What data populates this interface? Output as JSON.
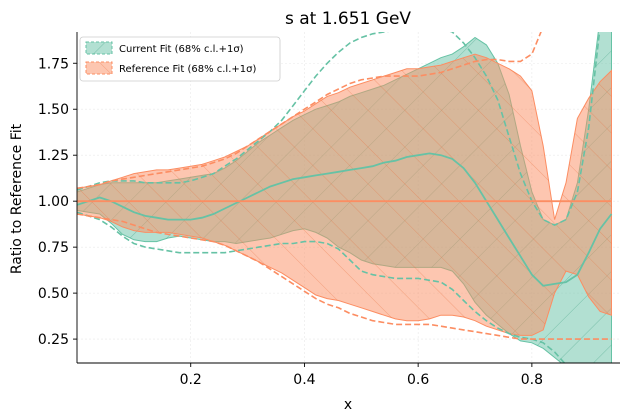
{
  "chart_data": {
    "type": "area",
    "title": "s at 1.651 GeV",
    "xlabel": "x",
    "ylabel": "Ratio to Reference Fit",
    "xlim": [
      0.0,
      0.955
    ],
    "ylim": [
      0.12,
      1.92
    ],
    "x_ticks": [
      0.2,
      0.4,
      0.6,
      0.8
    ],
    "x_tick_labels": [
      "0.2",
      "0.4",
      "0.6",
      "0.8"
    ],
    "y_ticks": [
      0.25,
      0.5,
      0.75,
      1.0,
      1.25,
      1.5,
      1.75
    ],
    "y_tick_labels": [
      "0.25",
      "0.50",
      "0.75",
      "1.00",
      "1.25",
      "1.50",
      "1.75"
    ],
    "grid": true,
    "legend_position": "top-left",
    "colors": {
      "current": "#66c2a5",
      "reference": "#fc8d62"
    },
    "x": [
      0.0,
      0.02,
      0.04,
      0.06,
      0.08,
      0.1,
      0.12,
      0.14,
      0.16,
      0.18,
      0.2,
      0.22,
      0.24,
      0.26,
      0.28,
      0.3,
      0.32,
      0.34,
      0.36,
      0.38,
      0.4,
      0.42,
      0.44,
      0.46,
      0.48,
      0.5,
      0.52,
      0.54,
      0.56,
      0.58,
      0.6,
      0.62,
      0.64,
      0.66,
      0.68,
      0.7,
      0.72,
      0.74,
      0.76,
      0.78,
      0.8,
      0.82,
      0.84,
      0.86,
      0.88,
      0.9,
      0.92,
      0.94
    ],
    "series": [
      {
        "name": "Current Fit (68% c.l.+1σ)",
        "central": [
          0.98,
          1.0,
          1.02,
          1.0,
          0.97,
          0.94,
          0.92,
          0.91,
          0.9,
          0.9,
          0.9,
          0.91,
          0.93,
          0.96,
          0.99,
          1.02,
          1.05,
          1.08,
          1.1,
          1.12,
          1.13,
          1.14,
          1.15,
          1.16,
          1.17,
          1.18,
          1.19,
          1.21,
          1.22,
          1.24,
          1.25,
          1.26,
          1.25,
          1.23,
          1.18,
          1.1,
          1.0,
          0.9,
          0.8,
          0.7,
          0.6,
          0.54,
          0.55,
          0.56,
          0.6,
          0.72,
          0.85,
          0.93
        ],
        "lower": [
          0.95,
          0.94,
          0.93,
          0.88,
          0.82,
          0.79,
          0.78,
          0.78,
          0.8,
          0.81,
          0.8,
          0.79,
          0.78,
          0.78,
          0.77,
          0.78,
          0.79,
          0.8,
          0.82,
          0.84,
          0.85,
          0.83,
          0.8,
          0.75,
          0.72,
          0.68,
          0.66,
          0.65,
          0.64,
          0.64,
          0.64,
          0.64,
          0.64,
          0.62,
          0.55,
          0.45,
          0.38,
          0.33,
          0.28,
          0.24,
          0.23,
          0.2,
          0.15,
          0.1,
          0.05,
          0.05,
          0.05,
          0.05
        ],
        "upper": [
          1.05,
          1.07,
          1.09,
          1.1,
          1.1,
          1.1,
          1.1,
          1.1,
          1.11,
          1.12,
          1.13,
          1.14,
          1.15,
          1.18,
          1.22,
          1.27,
          1.32,
          1.36,
          1.4,
          1.44,
          1.47,
          1.5,
          1.52,
          1.54,
          1.57,
          1.59,
          1.61,
          1.63,
          1.66,
          1.69,
          1.72,
          1.75,
          1.78,
          1.8,
          1.84,
          1.89,
          1.85,
          1.75,
          1.58,
          1.3,
          1.05,
          0.9,
          0.87,
          0.9,
          1.1,
          1.5,
          2.0,
          2.1
        ],
        "dashed_lower": [
          0.94,
          0.92,
          0.9,
          0.86,
          0.81,
          0.77,
          0.75,
          0.74,
          0.73,
          0.72,
          0.72,
          0.72,
          0.72,
          0.72,
          0.73,
          0.74,
          0.75,
          0.76,
          0.77,
          0.77,
          0.78,
          0.78,
          0.77,
          0.74,
          0.68,
          0.62,
          0.6,
          0.59,
          0.58,
          0.58,
          0.58,
          0.57,
          0.56,
          0.52,
          0.46,
          0.4,
          0.35,
          0.31,
          0.28,
          0.26,
          0.25,
          0.23,
          0.18,
          0.11,
          0.05,
          0.04,
          0.04,
          0.04
        ],
        "dashed_upper": [
          1.06,
          1.08,
          1.1,
          1.11,
          1.11,
          1.11,
          1.1,
          1.1,
          1.1,
          1.1,
          1.11,
          1.13,
          1.15,
          1.19,
          1.23,
          1.28,
          1.33,
          1.38,
          1.44,
          1.52,
          1.6,
          1.68,
          1.75,
          1.81,
          1.86,
          1.89,
          1.91,
          1.92,
          1.93,
          1.95,
          1.93,
          1.94,
          1.94,
          1.92,
          1.86,
          1.78,
          1.68,
          1.55,
          1.35,
          1.15,
          1.0,
          0.9,
          0.87,
          0.9,
          1.05,
          1.4,
          1.95,
          2.05
        ]
      },
      {
        "name": "Reference Fit (68% c.l.+1σ)",
        "central": [
          1.0,
          1.0,
          1.0,
          1.0,
          1.0,
          1.0,
          1.0,
          1.0,
          1.0,
          1.0,
          1.0,
          1.0,
          1.0,
          1.0,
          1.0,
          1.0,
          1.0,
          1.0,
          1.0,
          1.0,
          1.0,
          1.0,
          1.0,
          1.0,
          1.0,
          1.0,
          1.0,
          1.0,
          1.0,
          1.0,
          1.0,
          1.0,
          1.0,
          1.0,
          1.0,
          1.0,
          1.0,
          1.0,
          1.0,
          1.0,
          1.0,
          1.0,
          1.0,
          1.0,
          1.0,
          1.0,
          1.0,
          1.0
        ],
        "lower": [
          0.93,
          0.92,
          0.91,
          0.89,
          0.86,
          0.84,
          0.83,
          0.83,
          0.83,
          0.82,
          0.81,
          0.8,
          0.78,
          0.76,
          0.73,
          0.7,
          0.67,
          0.64,
          0.61,
          0.57,
          0.53,
          0.49,
          0.47,
          0.46,
          0.44,
          0.42,
          0.4,
          0.38,
          0.36,
          0.35,
          0.35,
          0.36,
          0.38,
          0.38,
          0.37,
          0.35,
          0.32,
          0.3,
          0.28,
          0.27,
          0.27,
          0.3,
          0.5,
          0.62,
          0.6,
          0.48,
          0.4,
          0.38
        ],
        "upper": [
          1.07,
          1.08,
          1.09,
          1.11,
          1.13,
          1.15,
          1.16,
          1.17,
          1.17,
          1.18,
          1.19,
          1.2,
          1.22,
          1.24,
          1.27,
          1.3,
          1.34,
          1.38,
          1.42,
          1.46,
          1.49,
          1.53,
          1.57,
          1.59,
          1.62,
          1.64,
          1.66,
          1.68,
          1.7,
          1.72,
          1.72,
          1.73,
          1.74,
          1.76,
          1.78,
          1.8,
          1.78,
          1.75,
          1.72,
          1.68,
          1.6,
          1.3,
          0.9,
          1.1,
          1.45,
          1.56,
          1.65,
          1.71
        ],
        "dashed_lower": [
          0.93,
          0.92,
          0.91,
          0.9,
          0.89,
          0.87,
          0.85,
          0.83,
          0.82,
          0.81,
          0.8,
          0.79,
          0.78,
          0.76,
          0.73,
          0.7,
          0.67,
          0.63,
          0.59,
          0.55,
          0.51,
          0.47,
          0.44,
          0.42,
          0.39,
          0.37,
          0.35,
          0.34,
          0.33,
          0.33,
          0.33,
          0.33,
          0.32,
          0.31,
          0.3,
          0.29,
          0.28,
          0.27,
          0.26,
          0.25,
          0.25,
          0.25,
          0.25,
          0.25,
          0.25,
          0.25,
          0.25,
          0.25
        ],
        "dashed_upper": [
          1.07,
          1.08,
          1.09,
          1.11,
          1.12,
          1.13,
          1.14,
          1.15,
          1.16,
          1.17,
          1.18,
          1.19,
          1.21,
          1.23,
          1.26,
          1.3,
          1.34,
          1.38,
          1.42,
          1.46,
          1.5,
          1.54,
          1.58,
          1.61,
          1.64,
          1.66,
          1.67,
          1.68,
          1.68,
          1.68,
          1.68,
          1.69,
          1.7,
          1.72,
          1.74,
          1.76,
          1.77,
          1.77,
          1.76,
          1.76,
          1.8,
          1.95,
          2.05,
          2.05,
          2.05,
          2.05,
          2.05,
          2.05
        ]
      }
    ]
  }
}
